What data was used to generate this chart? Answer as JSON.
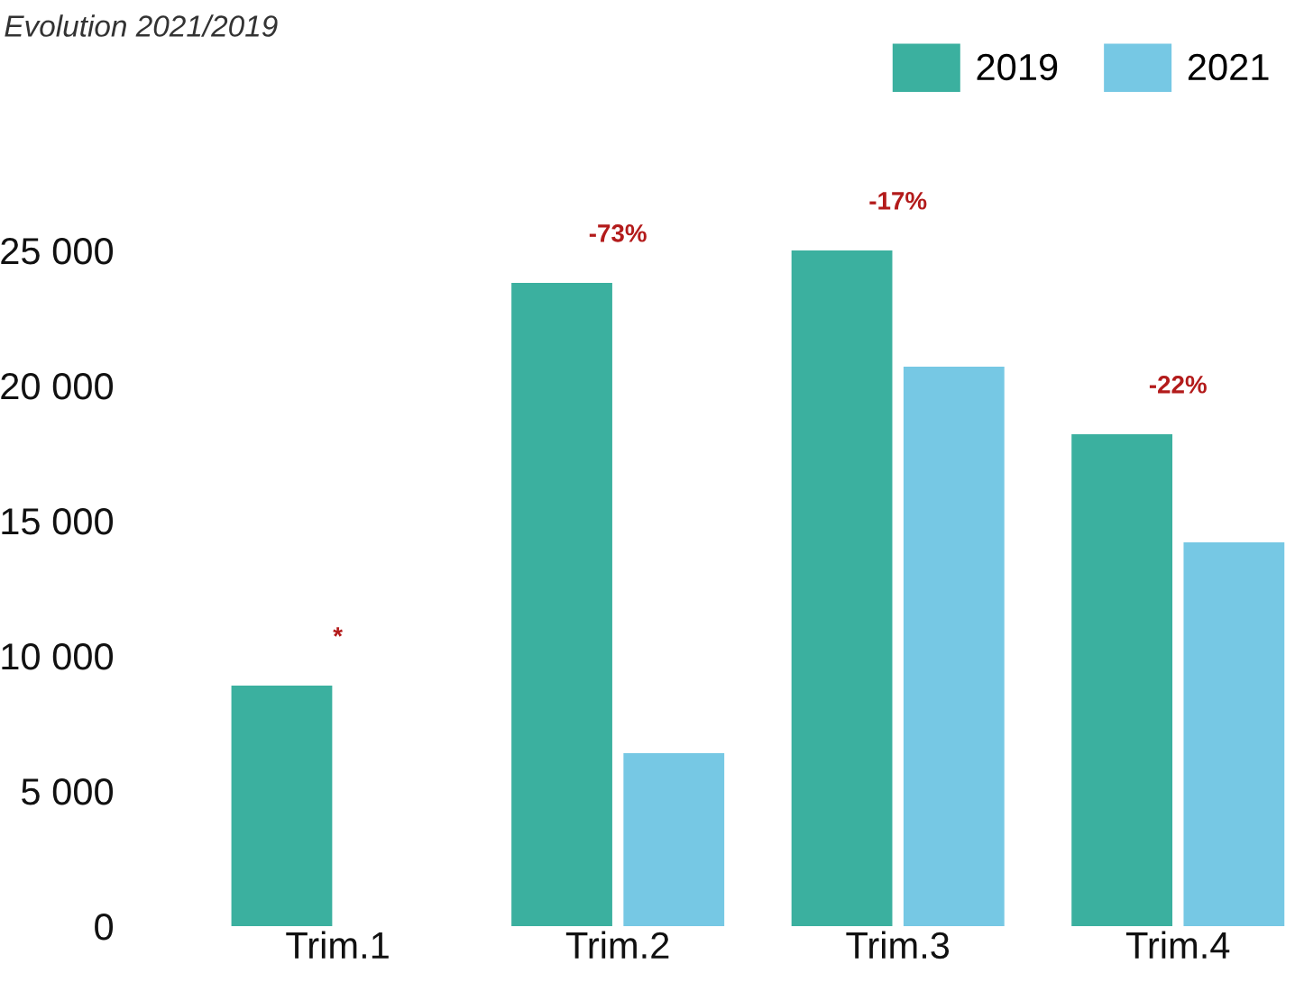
{
  "chart_data": {
    "type": "bar",
    "title": "Evolution 2021/2019",
    "categories": [
      "Trim.1",
      "Trim.2",
      "Trim.3",
      "Trim.4"
    ],
    "series": [
      {
        "name": "2019",
        "color": "#3bb09f",
        "values": [
          8900,
          23800,
          25000,
          18200
        ]
      },
      {
        "name": "2021",
        "color": "#76c8e4",
        "values": [
          null,
          6400,
          20700,
          14200
        ]
      }
    ],
    "ylim": [
      0,
      25000
    ],
    "yticks": [
      {
        "value": 0,
        "label": "0"
      },
      {
        "value": 5000,
        "label": "5 000"
      },
      {
        "value": 10000,
        "label": "10 000"
      },
      {
        "value": 15000,
        "label": "15 000"
      },
      {
        "value": 20000,
        "label": "20 000"
      },
      {
        "value": 25000,
        "label": "25 000"
      }
    ],
    "annotations": [
      "*",
      "-73%",
      "-17%",
      "-22%"
    ],
    "grid": false,
    "legend": "top right"
  }
}
